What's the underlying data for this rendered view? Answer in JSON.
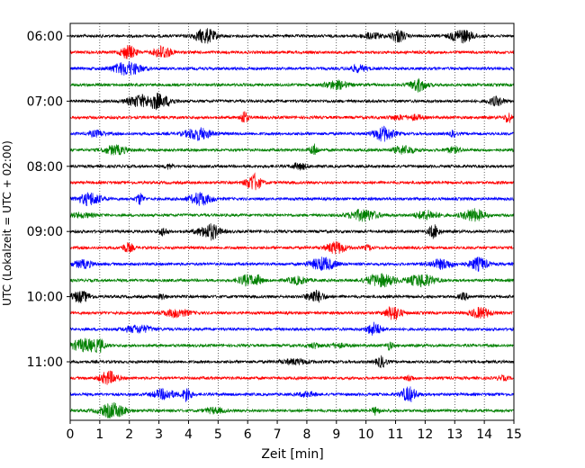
{
  "chart_data": {
    "type": "line",
    "xlabel": "Zeit  [min]",
    "ylabel": "UTC (Lokalzeit = UTC + 02:00)",
    "xlim": [
      0,
      15
    ],
    "x_ticks": [
      0,
      1,
      2,
      3,
      4,
      5,
      6,
      7,
      8,
      9,
      10,
      11,
      12,
      13,
      14,
      15
    ],
    "y_tick_labels": [
      "06:00",
      "07:00",
      "08:00",
      "09:00",
      "10:00",
      "11:00"
    ],
    "rows_per_hour": 4,
    "start_time": "06:00",
    "row_count": 24,
    "grid": "vertical-dotted",
    "colors": [
      "#000000",
      "#ff0000",
      "#0000ff",
      "#008000"
    ],
    "traces": [
      {
        "time": "06:00",
        "color": "#000000"
      },
      {
        "time": "06:15",
        "color": "#ff0000"
      },
      {
        "time": "06:30",
        "color": "#0000ff"
      },
      {
        "time": "06:45",
        "color": "#008000"
      },
      {
        "time": "07:00",
        "color": "#000000"
      },
      {
        "time": "07:15",
        "color": "#ff0000"
      },
      {
        "time": "07:30",
        "color": "#0000ff"
      },
      {
        "time": "07:45",
        "color": "#008000"
      },
      {
        "time": "08:00",
        "color": "#000000"
      },
      {
        "time": "08:15",
        "color": "#ff0000"
      },
      {
        "time": "08:30",
        "color": "#0000ff"
      },
      {
        "time": "08:45",
        "color": "#008000"
      },
      {
        "time": "09:00",
        "color": "#000000"
      },
      {
        "time": "09:15",
        "color": "#ff0000"
      },
      {
        "time": "09:30",
        "color": "#0000ff"
      },
      {
        "time": "09:45",
        "color": "#008000"
      },
      {
        "time": "10:00",
        "color": "#000000"
      },
      {
        "time": "10:15",
        "color": "#ff0000"
      },
      {
        "time": "10:30",
        "color": "#0000ff"
      },
      {
        "time": "10:45",
        "color": "#008000"
      },
      {
        "time": "11:00",
        "color": "#000000"
      },
      {
        "time": "11:15",
        "color": "#ff0000"
      },
      {
        "time": "11:30",
        "color": "#0000ff"
      },
      {
        "time": "11:45",
        "color": "#008000"
      }
    ]
  }
}
